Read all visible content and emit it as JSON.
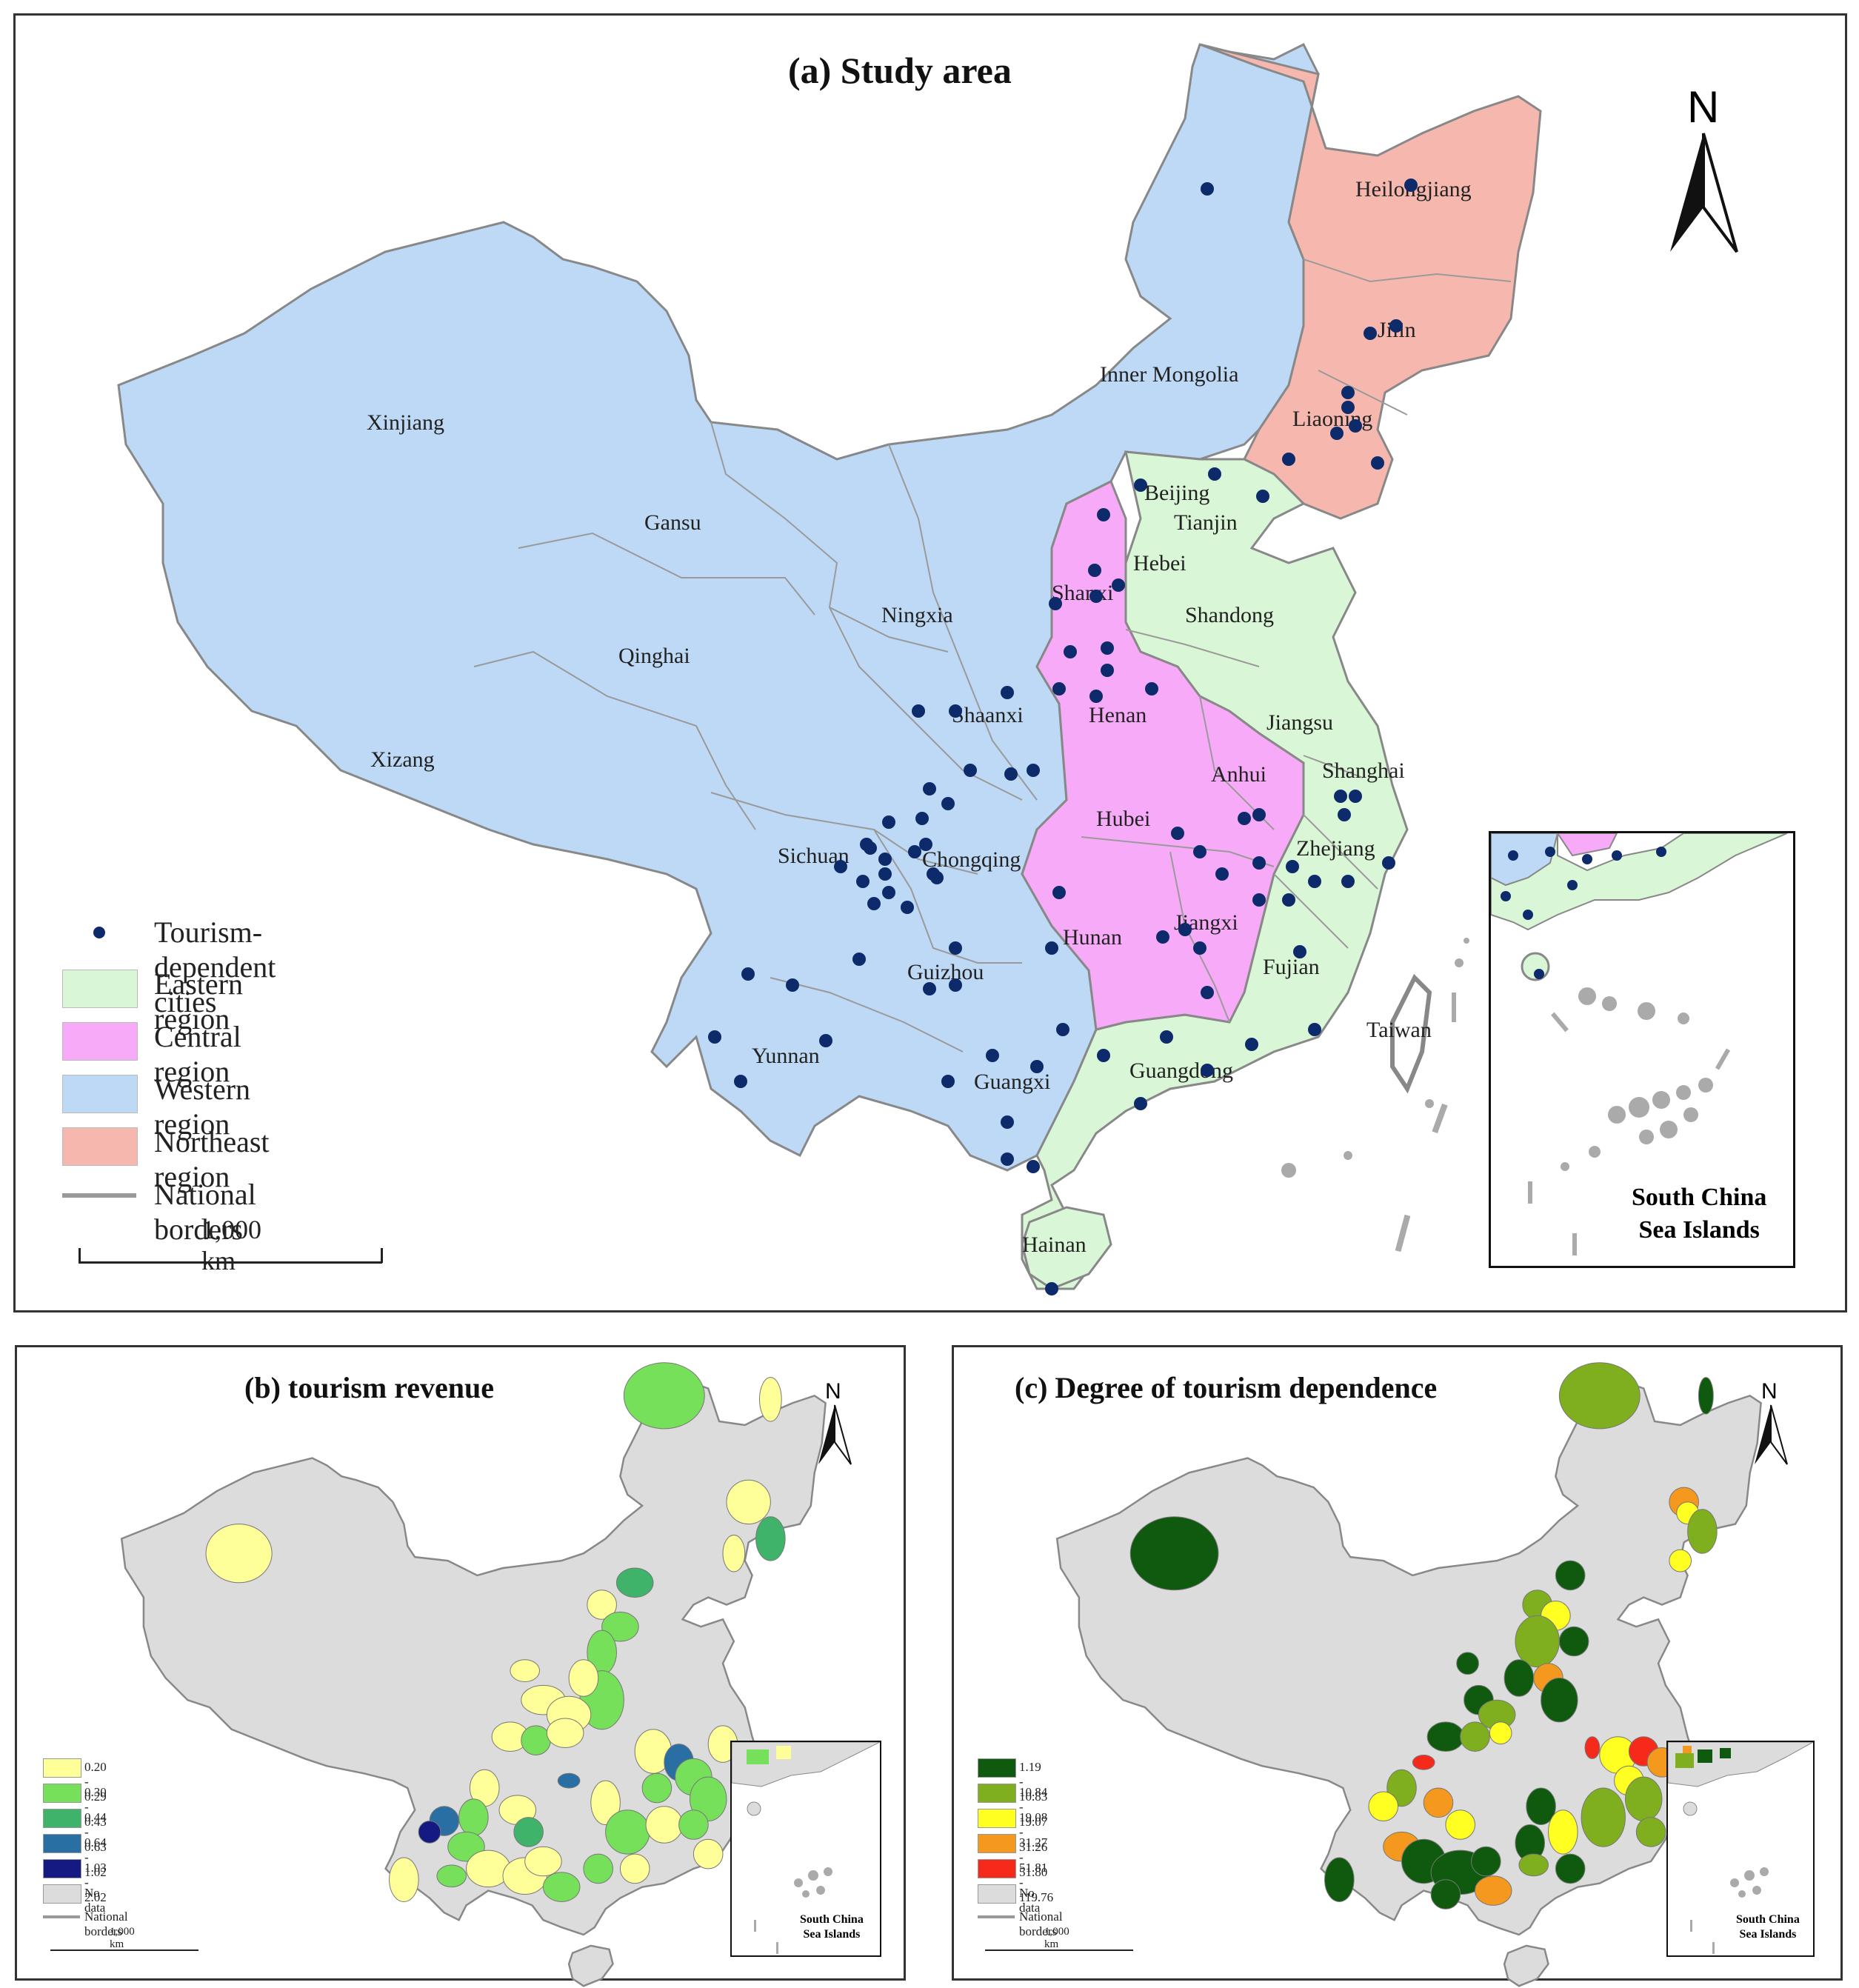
{
  "panel_a": {
    "title": "(a) Study area",
    "north": "N",
    "inset_label_1": "South China",
    "inset_label_2": "Sea Islands",
    "scale_label": "1,000 km",
    "legend": {
      "cities": "Tourism-dependent cities",
      "eastern": "Eastern region",
      "central": "Central region",
      "western": "Western region",
      "northeast": "Northeast region",
      "borders": "National borders"
    },
    "colors": {
      "eastern": "#d9f7d6",
      "central": "#f7aaf7",
      "western": "#bdd9f5",
      "northeast": "#f6b8ae",
      "city": "#0d2a6b"
    },
    "provinces": [
      "Heilongjiang",
      "Jilin",
      "Liaoning",
      "Inner Mongolia",
      "Xinjiang",
      "Gansu",
      "Beijing",
      "Tianjin",
      "Hebei",
      "Shanxi",
      "Shandong",
      "Ningxia",
      "Qinghai",
      "Xizang",
      "Shaanxi",
      "Henan",
      "Jiangsu",
      "Shanghai",
      "Anhui",
      "Hubei",
      "Sichuan",
      "Chongqing",
      "Zhejiang",
      "Hunan",
      "Jiangxi",
      "Guizhou",
      "Fujian",
      "Yunnan",
      "Guangxi",
      "Guangdong",
      "Taiwan",
      "Hainan"
    ]
  },
  "panel_b": {
    "title": "(b) tourism revenue",
    "north": "N",
    "inset_label_1": "South China",
    "inset_label_2": "Sea Islands",
    "legend": [
      {
        "label": "0.20 - 0.29",
        "color": "#ffff99"
      },
      {
        "label": "0.30 - 0.43",
        "color": "#77e05a"
      },
      {
        "label": "0.44 - 0.63",
        "color": "#3fb36a"
      },
      {
        "label": "0.64 - 1.02",
        "color": "#2a6fa3"
      },
      {
        "label": "1.03 - 2.02",
        "color": "#141a82"
      },
      {
        "label": "No data",
        "color": "#dcdcdc"
      }
    ],
    "borders": "National borders",
    "scale_label": "1,000 km"
  },
  "panel_c": {
    "title": "(c) Degree of tourism dependence",
    "north": "N",
    "inset_label_1": "South China",
    "inset_label_2": "Sea Islands",
    "legend": [
      {
        "label": "1.19 - 10.83",
        "color": "#0f5a0f"
      },
      {
        "label": "10.84 - 19.07",
        "color": "#7fae1f"
      },
      {
        "label": "19.08 - 31.26",
        "color": "#ffff22"
      },
      {
        "label": "31.27 - 51.80",
        "color": "#f5981e"
      },
      {
        "label": "51.81 - 119.76",
        "color": "#f52a1a"
      },
      {
        "label": "No data",
        "color": "#dcdcdc"
      }
    ],
    "borders": "National borders",
    "scale_label": "1,000 km"
  }
}
